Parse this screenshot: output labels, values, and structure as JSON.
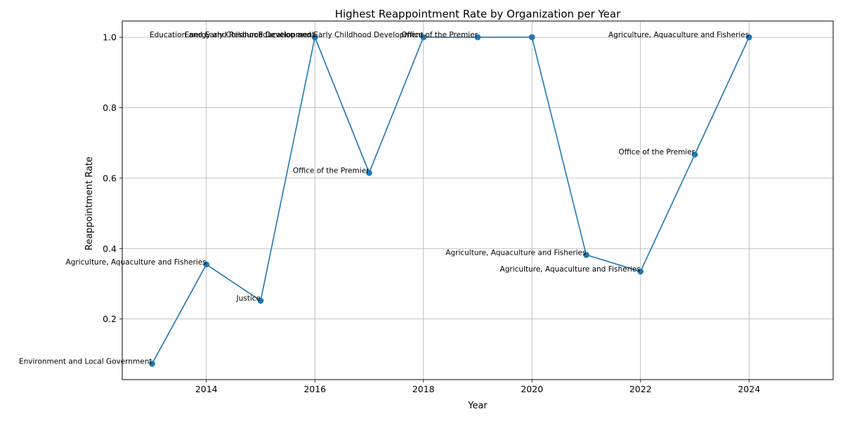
{
  "chart_data": {
    "type": "line",
    "title": "Highest Reappointment Rate by Organization per Year",
    "xlabel": "Year",
    "ylabel": "Reappointment Rate",
    "xlim": [
      2012.45,
      2025.55
    ],
    "ylim": [
      0.028,
      1.046
    ],
    "xticks": [
      2014,
      2016,
      2018,
      2020,
      2022,
      2024
    ],
    "yticks": [
      0.2,
      0.4,
      0.6,
      0.8,
      1.0
    ],
    "xtick_labels": [
      "2014",
      "2016",
      "2018",
      "2020",
      "2022",
      "2024"
    ],
    "ytick_labels": [
      "0.2",
      "0.4",
      "0.6",
      "0.8",
      "1.0"
    ],
    "grid": true,
    "color": "#1f77b4",
    "points": [
      {
        "x": 2013,
        "y": 0.073,
        "label": "Environment and Local Government"
      },
      {
        "x": 2014,
        "y": 0.355,
        "label": "Agriculture, Aquaculture and Fisheries"
      },
      {
        "x": 2015,
        "y": 0.252,
        "label": "Justice"
      },
      {
        "x": 2016,
        "y": 1.0,
        "label": "Energy and Resource Development"
      },
      {
        "x": 2016,
        "y": 1.0,
        "label": "Education and Early Childhood Development"
      },
      {
        "x": 2017,
        "y": 0.615,
        "label": "Office of the Premier"
      },
      {
        "x": 2018,
        "y": 1.0,
        "label": "Education and Early Childhood Development"
      },
      {
        "x": 2019,
        "y": 1.0,
        "label": "Office of the Premier"
      },
      {
        "x": 2020,
        "y": 1.0,
        "label": ""
      },
      {
        "x": 2021,
        "y": 0.382,
        "label": "Agriculture, Aquaculture and Fisheries"
      },
      {
        "x": 2022,
        "y": 0.335,
        "label": "Agriculture, Aquaculture and Fisheries"
      },
      {
        "x": 2023,
        "y": 0.667,
        "label": "Office of the Premier"
      },
      {
        "x": 2024,
        "y": 1.0,
        "label": "Agriculture, Aquaculture and Fisheries"
      }
    ]
  }
}
